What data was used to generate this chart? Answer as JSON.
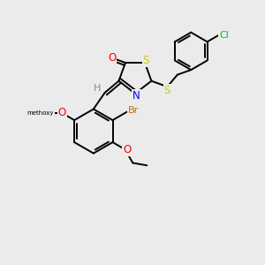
{
  "background_color": "#ebebeb",
  "bond_color": "#000000",
  "atom_colors": {
    "O": "#ff0000",
    "S": "#cccc00",
    "N": "#0000ff",
    "Br": "#cc6600",
    "Cl": "#00cc00",
    "H": "#888888",
    "C": "#000000"
  },
  "figsize": [
    3.0,
    3.0
  ],
  "dpi": 100
}
